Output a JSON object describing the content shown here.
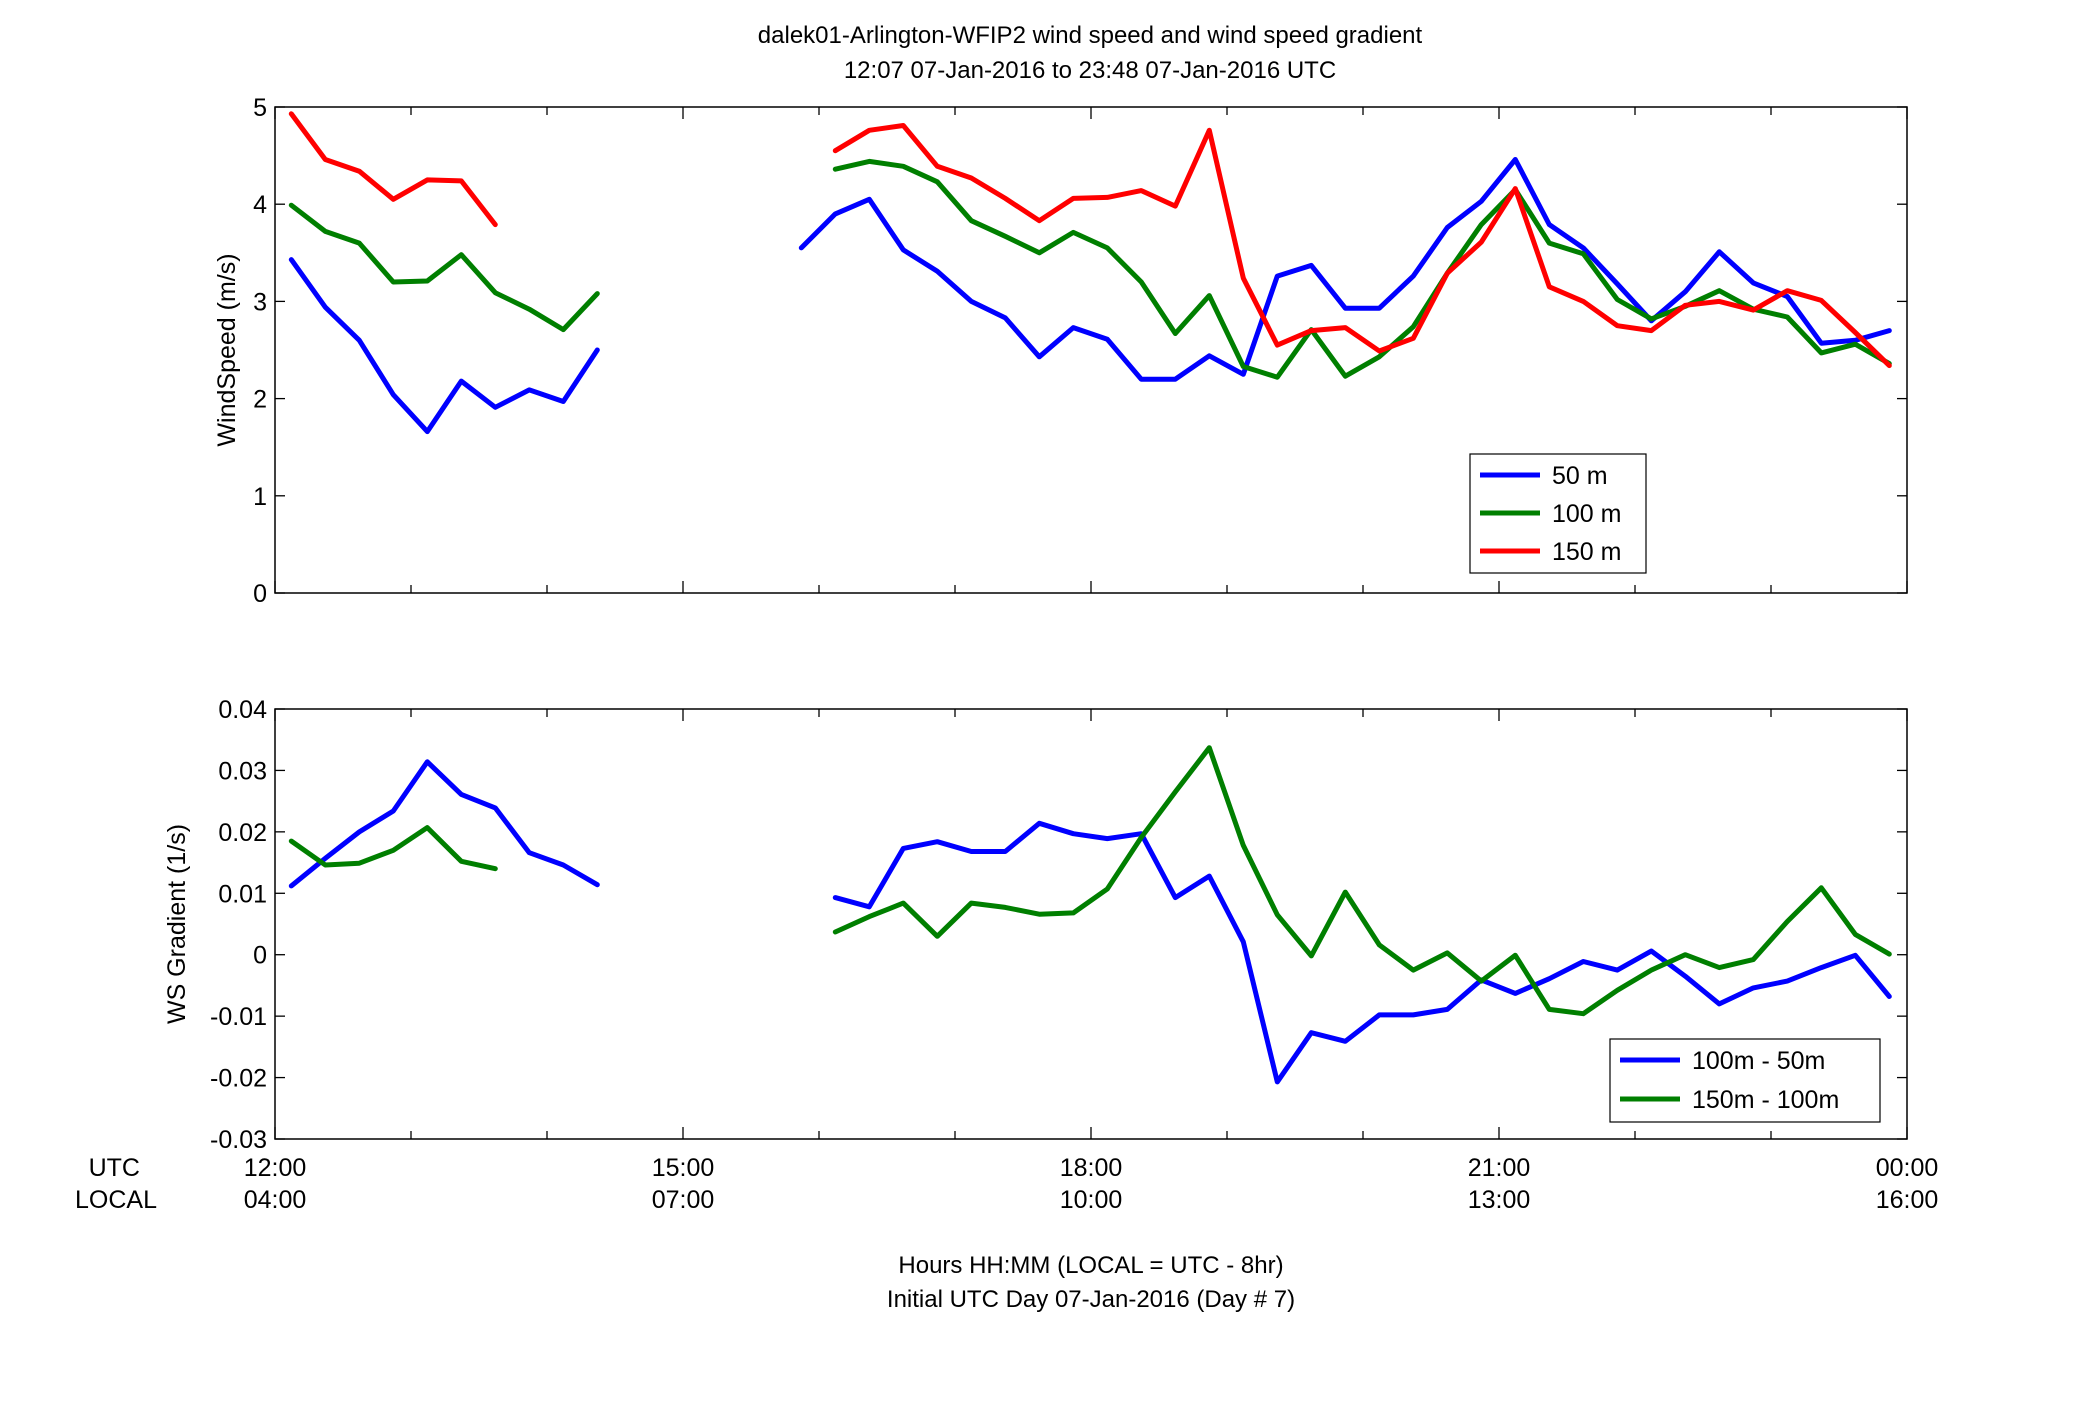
{
  "title": {
    "line1": "dalek01-Arlington-WFIP2  wind speed and wind speed gradient",
    "line2": "12:07 07-Jan-2016 to 23:48 07-Jan-2016  UTC"
  },
  "xaxis": {
    "utc_label": "UTC",
    "local_label": "LOCAL",
    "utc_ticks": [
      "12:00",
      "15:00",
      "18:00",
      "21:00",
      "00:00"
    ],
    "local_ticks": [
      "04:00",
      "07:00",
      "10:00",
      "13:00",
      "16:00"
    ],
    "xlabel_line1": "Hours HH:MM  (LOCAL = UTC - 8hr)",
    "xlabel_line2": "Initial UTC Day 07-Jan-2016 (Day # 7)"
  },
  "colors": {
    "blue": "#0000ff",
    "green": "#007f00",
    "red": "#ff0000"
  },
  "chart_data": [
    {
      "type": "line",
      "ylabel": "WindSpeed (m/s)",
      "xlim": [
        12,
        24
      ],
      "ylim": [
        0,
        5
      ],
      "yticks": [
        "0",
        "1",
        "2",
        "3",
        "4",
        "5"
      ],
      "grid": false,
      "legend_position": "bottom-right",
      "series": [
        {
          "name": "50 m",
          "color": "#0000ff",
          "segments": [
            [
              [
                12.12,
                3.43
              ],
              [
                12.37,
                2.94
              ],
              [
                12.62,
                2.6
              ],
              [
                12.87,
                2.04
              ],
              [
                13.12,
                1.66
              ],
              [
                13.37,
                2.18
              ],
              [
                13.62,
                1.91
              ],
              [
                13.87,
                2.09
              ],
              [
                14.12,
                1.97
              ],
              [
                14.37,
                2.5
              ]
            ],
            [
              [
                15.87,
                3.55
              ],
              [
                16.12,
                3.9
              ],
              [
                16.37,
                4.05
              ],
              [
                16.62,
                3.53
              ],
              [
                16.87,
                3.31
              ],
              [
                17.12,
                3.0
              ],
              [
                17.37,
                2.83
              ],
              [
                17.62,
                2.43
              ],
              [
                17.87,
                2.73
              ],
              [
                18.12,
                2.61
              ],
              [
                18.37,
                2.2
              ],
              [
                18.62,
                2.2
              ],
              [
                18.87,
                2.44
              ],
              [
                19.12,
                2.25
              ],
              [
                19.37,
                3.26
              ],
              [
                19.62,
                3.37
              ],
              [
                19.87,
                2.93
              ],
              [
                20.12,
                2.93
              ],
              [
                20.37,
                3.26
              ],
              [
                20.62,
                3.76
              ],
              [
                20.87,
                4.03
              ],
              [
                21.12,
                4.46
              ],
              [
                21.37,
                3.79
              ],
              [
                21.62,
                3.55
              ],
              [
                21.87,
                3.18
              ],
              [
                22.12,
                2.8
              ],
              [
                22.37,
                3.1
              ],
              [
                22.62,
                3.51
              ],
              [
                22.87,
                3.19
              ],
              [
                23.12,
                3.05
              ],
              [
                23.37,
                2.57
              ],
              [
                23.62,
                2.6
              ],
              [
                23.87,
                2.7
              ]
            ]
          ]
        },
        {
          "name": "100 m",
          "color": "#007f00",
          "segments": [
            [
              [
                12.12,
                3.99
              ],
              [
                12.37,
                3.72
              ],
              [
                12.62,
                3.6
              ],
              [
                12.87,
                3.2
              ],
              [
                13.12,
                3.21
              ],
              [
                13.37,
                3.48
              ],
              [
                13.62,
                3.09
              ],
              [
                13.87,
                2.92
              ],
              [
                14.12,
                2.71
              ],
              [
                14.37,
                3.08
              ]
            ],
            [
              [
                16.12,
                4.36
              ],
              [
                16.37,
                4.44
              ],
              [
                16.62,
                4.39
              ],
              [
                16.87,
                4.23
              ],
              [
                17.12,
                3.83
              ],
              [
                17.37,
                3.67
              ],
              [
                17.62,
                3.5
              ],
              [
                17.87,
                3.71
              ],
              [
                18.12,
                3.55
              ],
              [
                18.37,
                3.2
              ],
              [
                18.62,
                2.67
              ],
              [
                18.87,
                3.06
              ],
              [
                19.12,
                2.33
              ],
              [
                19.37,
                2.22
              ],
              [
                19.62,
                2.71
              ],
              [
                19.87,
                2.23
              ],
              [
                20.12,
                2.43
              ],
              [
                20.37,
                2.74
              ],
              [
                20.62,
                3.29
              ],
              [
                20.87,
                3.79
              ],
              [
                21.12,
                4.15
              ],
              [
                21.37,
                3.6
              ],
              [
                21.62,
                3.49
              ],
              [
                21.87,
                3.02
              ],
              [
                22.12,
                2.82
              ],
              [
                22.37,
                2.95
              ],
              [
                22.62,
                3.11
              ],
              [
                22.87,
                2.92
              ],
              [
                23.12,
                2.84
              ],
              [
                23.37,
                2.47
              ],
              [
                23.62,
                2.56
              ],
              [
                23.87,
                2.36
              ]
            ]
          ]
        },
        {
          "name": "150 m",
          "color": "#ff0000",
          "segments": [
            [
              [
                12.12,
                4.93
              ],
              [
                12.37,
                4.46
              ],
              [
                12.62,
                4.34
              ],
              [
                12.87,
                4.05
              ],
              [
                13.12,
                4.25
              ],
              [
                13.37,
                4.24
              ],
              [
                13.62,
                3.79
              ]
            ],
            [
              [
                16.12,
                4.55
              ],
              [
                16.37,
                4.76
              ],
              [
                16.62,
                4.81
              ],
              [
                16.87,
                4.39
              ],
              [
                17.12,
                4.27
              ],
              [
                17.37,
                4.06
              ],
              [
                17.62,
                3.83
              ],
              [
                17.87,
                4.06
              ],
              [
                18.12,
                4.07
              ],
              [
                18.37,
                4.14
              ],
              [
                18.62,
                3.98
              ],
              [
                18.87,
                4.76
              ],
              [
                19.12,
                3.24
              ],
              [
                19.37,
                2.55
              ],
              [
                19.62,
                2.7
              ],
              [
                19.87,
                2.73
              ],
              [
                20.12,
                2.49
              ],
              [
                20.37,
                2.62
              ],
              [
                20.62,
                3.29
              ],
              [
                20.87,
                3.61
              ],
              [
                21.12,
                4.16
              ],
              [
                21.37,
                3.15
              ],
              [
                21.62,
                3.0
              ],
              [
                21.87,
                2.75
              ],
              [
                22.12,
                2.7
              ],
              [
                22.37,
                2.96
              ],
              [
                22.62,
                3.0
              ],
              [
                22.87,
                2.91
              ],
              [
                23.12,
                3.11
              ],
              [
                23.37,
                3.01
              ],
              [
                23.62,
                2.68
              ],
              [
                23.87,
                2.34
              ]
            ]
          ]
        }
      ]
    },
    {
      "type": "line",
      "ylabel": "WS Gradient (1/s)",
      "xlim": [
        12,
        24
      ],
      "ylim": [
        -0.03,
        0.04
      ],
      "yticks": [
        "-0.03",
        "-0.02",
        "-0.01",
        "0",
        "0.01",
        "0.02",
        "0.03",
        "0.04"
      ],
      "grid": false,
      "legend_position": "bottom-right",
      "series": [
        {
          "name": "100m - 50m",
          "color": "#0000ff",
          "segments": [
            [
              [
                12.12,
                0.0112
              ],
              [
                12.37,
                0.0157
              ],
              [
                12.62,
                0.02
              ],
              [
                12.87,
                0.0234
              ],
              [
                13.12,
                0.0314
              ],
              [
                13.37,
                0.0261
              ],
              [
                13.62,
                0.0239
              ],
              [
                13.87,
                0.0166
              ],
              [
                14.12,
                0.0146
              ],
              [
                14.37,
                0.0114
              ]
            ],
            [
              [
                16.12,
                0.0093
              ],
              [
                16.37,
                0.0078
              ],
              [
                16.62,
                0.0173
              ],
              [
                16.87,
                0.0184
              ],
              [
                17.12,
                0.0168
              ],
              [
                17.37,
                0.0168
              ],
              [
                17.62,
                0.0214
              ],
              [
                17.87,
                0.0197
              ],
              [
                18.12,
                0.0189
              ],
              [
                18.37,
                0.0197
              ],
              [
                18.62,
                0.0093
              ],
              [
                18.87,
                0.0128
              ],
              [
                19.12,
                0.0021
              ],
              [
                19.37,
                -0.0207
              ],
              [
                19.62,
                -0.0127
              ],
              [
                19.87,
                -0.0141
              ],
              [
                20.12,
                -0.0098
              ],
              [
                20.37,
                -0.0098
              ],
              [
                20.62,
                -0.0089
              ],
              [
                20.87,
                -0.0041
              ],
              [
                21.12,
                -0.0063
              ],
              [
                21.37,
                -0.0039
              ],
              [
                21.62,
                -0.0011
              ],
              [
                21.87,
                -0.0025
              ],
              [
                22.12,
                0.0006
              ],
              [
                22.37,
                -0.0035
              ],
              [
                22.62,
                -0.008
              ],
              [
                22.87,
                -0.0054
              ],
              [
                23.12,
                -0.0043
              ],
              [
                23.37,
                -0.0021
              ],
              [
                23.62,
                -0.0001
              ],
              [
                23.87,
                -0.0068
              ]
            ]
          ]
        },
        {
          "name": "150m - 100m",
          "color": "#007f00",
          "segments": [
            [
              [
                12.12,
                0.0185
              ],
              [
                12.37,
                0.0146
              ],
              [
                12.62,
                0.0149
              ],
              [
                12.87,
                0.017
              ],
              [
                13.12,
                0.0207
              ],
              [
                13.37,
                0.0152
              ],
              [
                13.62,
                0.014
              ]
            ],
            [
              [
                16.12,
                0.0037
              ],
              [
                16.37,
                0.0062
              ],
              [
                16.62,
                0.0084
              ],
              [
                16.87,
                0.003
              ],
              [
                17.12,
                0.0084
              ],
              [
                17.37,
                0.0077
              ],
              [
                17.62,
                0.0066
              ],
              [
                17.87,
                0.0068
              ],
              [
                18.12,
                0.0107
              ],
              [
                18.37,
                0.0191
              ],
              [
                18.62,
                0.0265
              ],
              [
                18.87,
                0.0337
              ],
              [
                19.12,
                0.0178
              ],
              [
                19.37,
                0.0065
              ],
              [
                19.62,
                -0.0002
              ],
              [
                19.87,
                0.0102
              ],
              [
                20.12,
                0.0016
              ],
              [
                20.37,
                -0.0025
              ],
              [
                20.62,
                0.0003
              ],
              [
                20.87,
                -0.0043
              ],
              [
                21.12,
                -0.0001
              ],
              [
                21.37,
                -0.0089
              ],
              [
                21.62,
                -0.0096
              ],
              [
                21.87,
                -0.0058
              ],
              [
                22.12,
                -0.0025
              ],
              [
                22.37,
                0.0
              ],
              [
                22.62,
                -0.0021
              ],
              [
                22.87,
                -0.0008
              ],
              [
                23.12,
                0.0054
              ],
              [
                23.37,
                0.0109
              ],
              [
                23.62,
                0.0033
              ],
              [
                23.87,
                0.0001
              ]
            ]
          ]
        }
      ]
    }
  ]
}
